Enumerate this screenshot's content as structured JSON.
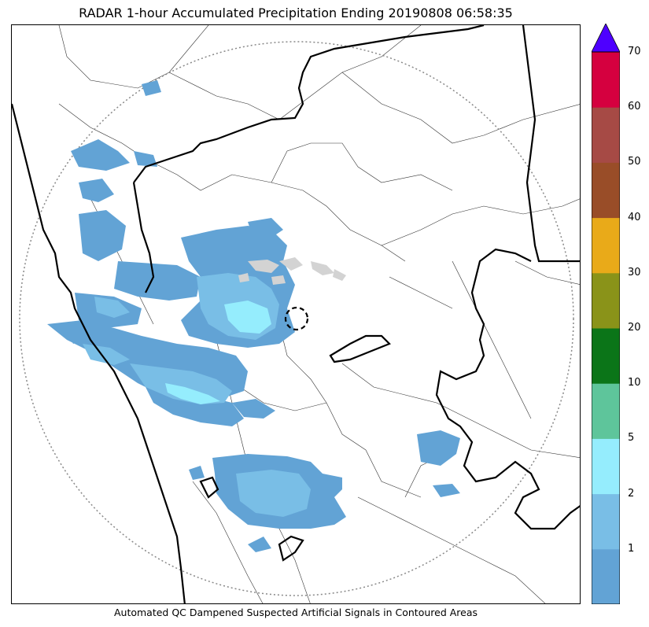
{
  "title": "RADAR 1-hour Accumulated Precipitation Ending 20190808 06:58:35",
  "caption": "Automated QC Dampened Suspected Artificial Signals in Contoured Areas",
  "colorbar": {
    "levels": [
      {
        "label": "1",
        "value": 1,
        "color": "#62a3d5"
      },
      {
        "label": "2",
        "value": 2,
        "color": "#79bee6"
      },
      {
        "label": "5",
        "value": 5,
        "color": "#95edfd"
      },
      {
        "label": "10",
        "value": 10,
        "color": "#5ec59b"
      },
      {
        "label": "20",
        "value": 20,
        "color": "#0b7518"
      },
      {
        "label": "30",
        "value": 30,
        "color": "#8a9319"
      },
      {
        "label": "40",
        "value": 40,
        "color": "#e9aa19"
      },
      {
        "label": "50",
        "value": 50,
        "color": "#994d28"
      },
      {
        "label": "60",
        "value": 60,
        "color": "#a64a45"
      },
      {
        "label": "70",
        "value": 70,
        "color": "#d5003f"
      }
    ],
    "below_color": "#62a3d5",
    "extend_color": "#4e00ff"
  }
}
